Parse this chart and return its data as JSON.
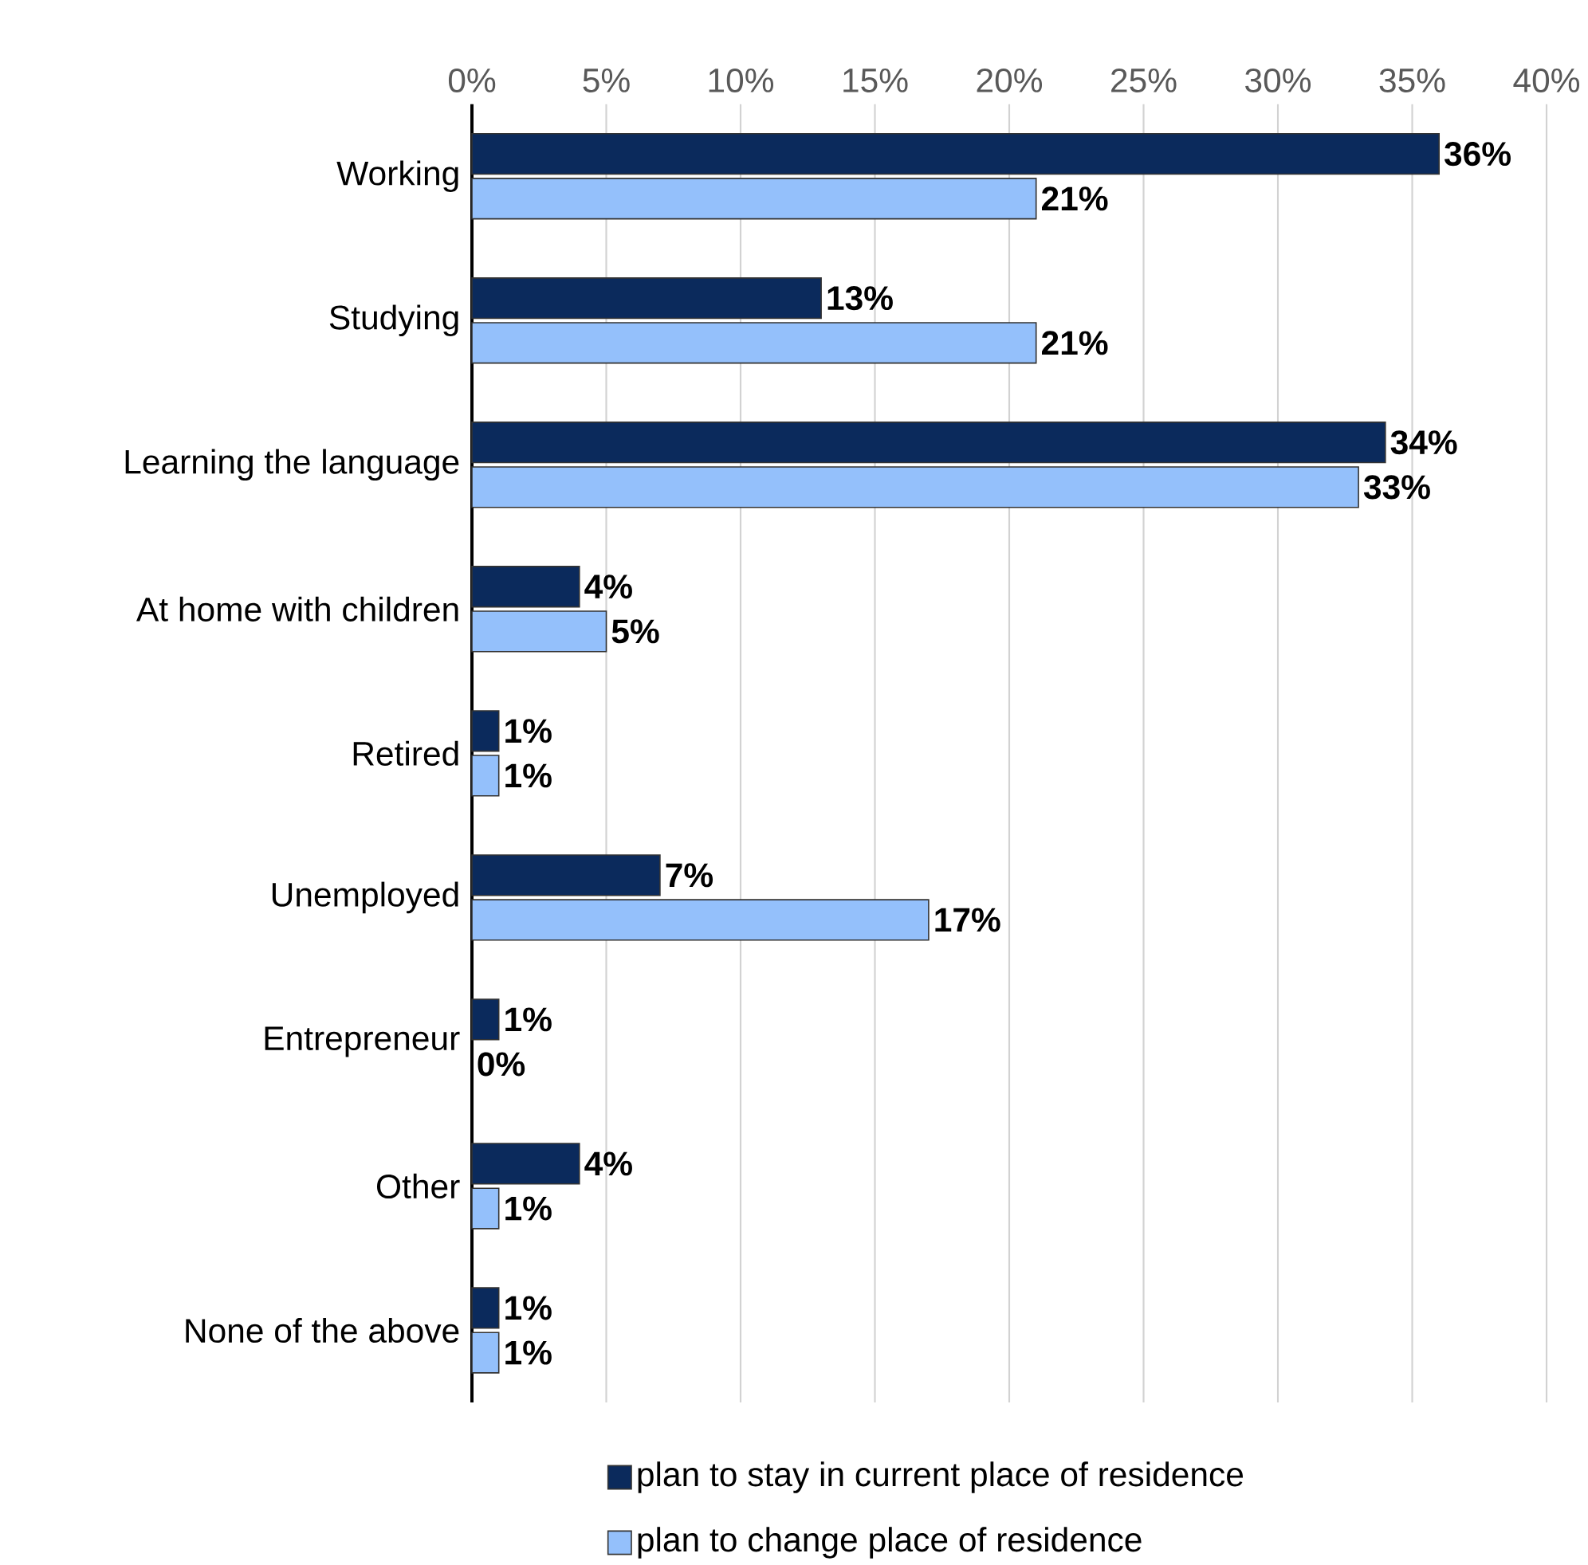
{
  "chart_data": {
    "type": "bar",
    "orientation": "horizontal",
    "categories": [
      "Working",
      "Studying",
      "Learning the language",
      "At home with children",
      "Retired",
      "Unemployed",
      "Entrepreneur",
      "Other",
      "None of the above"
    ],
    "series": [
      {
        "name": "plan to stay in current place of residence",
        "color": "#0b2a5c",
        "values": [
          36,
          13,
          34,
          4,
          1,
          7,
          1,
          4,
          1
        ],
        "value_labels": [
          "36%",
          "13%",
          "34%",
          "4%",
          "1%",
          "7%",
          "1%",
          "4%",
          "1%"
        ]
      },
      {
        "name": "plan to change place of residence",
        "color": "#94c0fb",
        "values": [
          21,
          21,
          33,
          5,
          1,
          17,
          0,
          1,
          1
        ],
        "value_labels": [
          "21%",
          "21%",
          "33%",
          "5%",
          "1%",
          "17%",
          "0%",
          "1%",
          "1%"
        ]
      }
    ],
    "xlim": [
      0,
      40
    ],
    "xticks": [
      {
        "value": 0,
        "label": "0%"
      },
      {
        "value": 5,
        "label": "5%"
      },
      {
        "value": 10,
        "label": "10%"
      },
      {
        "value": 15,
        "label": "15%"
      },
      {
        "value": 20,
        "label": "20%"
      },
      {
        "value": 25,
        "label": "25%"
      },
      {
        "value": 30,
        "label": "30%"
      },
      {
        "value": 35,
        "label": "35%"
      },
      {
        "value": 40,
        "label": "40%"
      }
    ],
    "grid": "x",
    "legend": "bottom"
  }
}
